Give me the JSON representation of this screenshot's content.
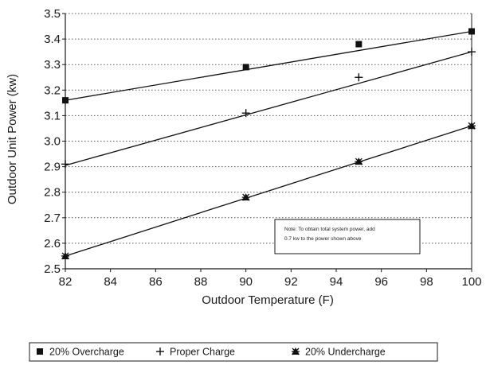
{
  "chart_data": {
    "type": "line",
    "title": "",
    "xlabel": "Outdoor Temperature (F)",
    "ylabel": "Outdoor Unit Power (kw)",
    "xlim": [
      82,
      100
    ],
    "ylim": [
      2.5,
      3.5
    ],
    "x_ticks": [
      "82",
      "84",
      "86",
      "88",
      "90",
      "92",
      "94",
      "96",
      "98",
      "100"
    ],
    "y_ticks": [
      "2.5",
      "2.6",
      "2.7",
      "2.8",
      "2.9",
      "3.0",
      "3.1",
      "3.2",
      "3.3",
      "3.4",
      "3.5"
    ],
    "grid": "horizontal dotted",
    "series": [
      {
        "name": "20% Overcharge",
        "marker": "square",
        "points": [
          [
            82,
            3.16
          ],
          [
            90,
            3.29
          ],
          [
            95,
            3.38
          ],
          [
            100,
            3.43
          ]
        ],
        "fit_line": [
          [
            82,
            3.16
          ],
          [
            100,
            3.43
          ]
        ]
      },
      {
        "name": "Proper Charge",
        "marker": "plus",
        "points": [
          [
            82,
            2.91
          ],
          [
            90,
            3.11
          ],
          [
            95,
            3.25
          ],
          [
            100,
            3.35
          ]
        ],
        "fit_line": [
          [
            82,
            2.905
          ],
          [
            100,
            3.35
          ]
        ]
      },
      {
        "name": "20% Undercharge",
        "marker": "asterisk",
        "points": [
          [
            82,
            2.55
          ],
          [
            90,
            2.78
          ],
          [
            95,
            2.92
          ],
          [
            100,
            3.06
          ]
        ],
        "fit_line": [
          [
            82,
            2.55
          ],
          [
            100,
            3.06
          ]
        ]
      }
    ],
    "note_lines": [
      "Note:  To obtain total system power, add",
      "0.7 kw to the power shown above"
    ],
    "legend_position": "bottom"
  }
}
